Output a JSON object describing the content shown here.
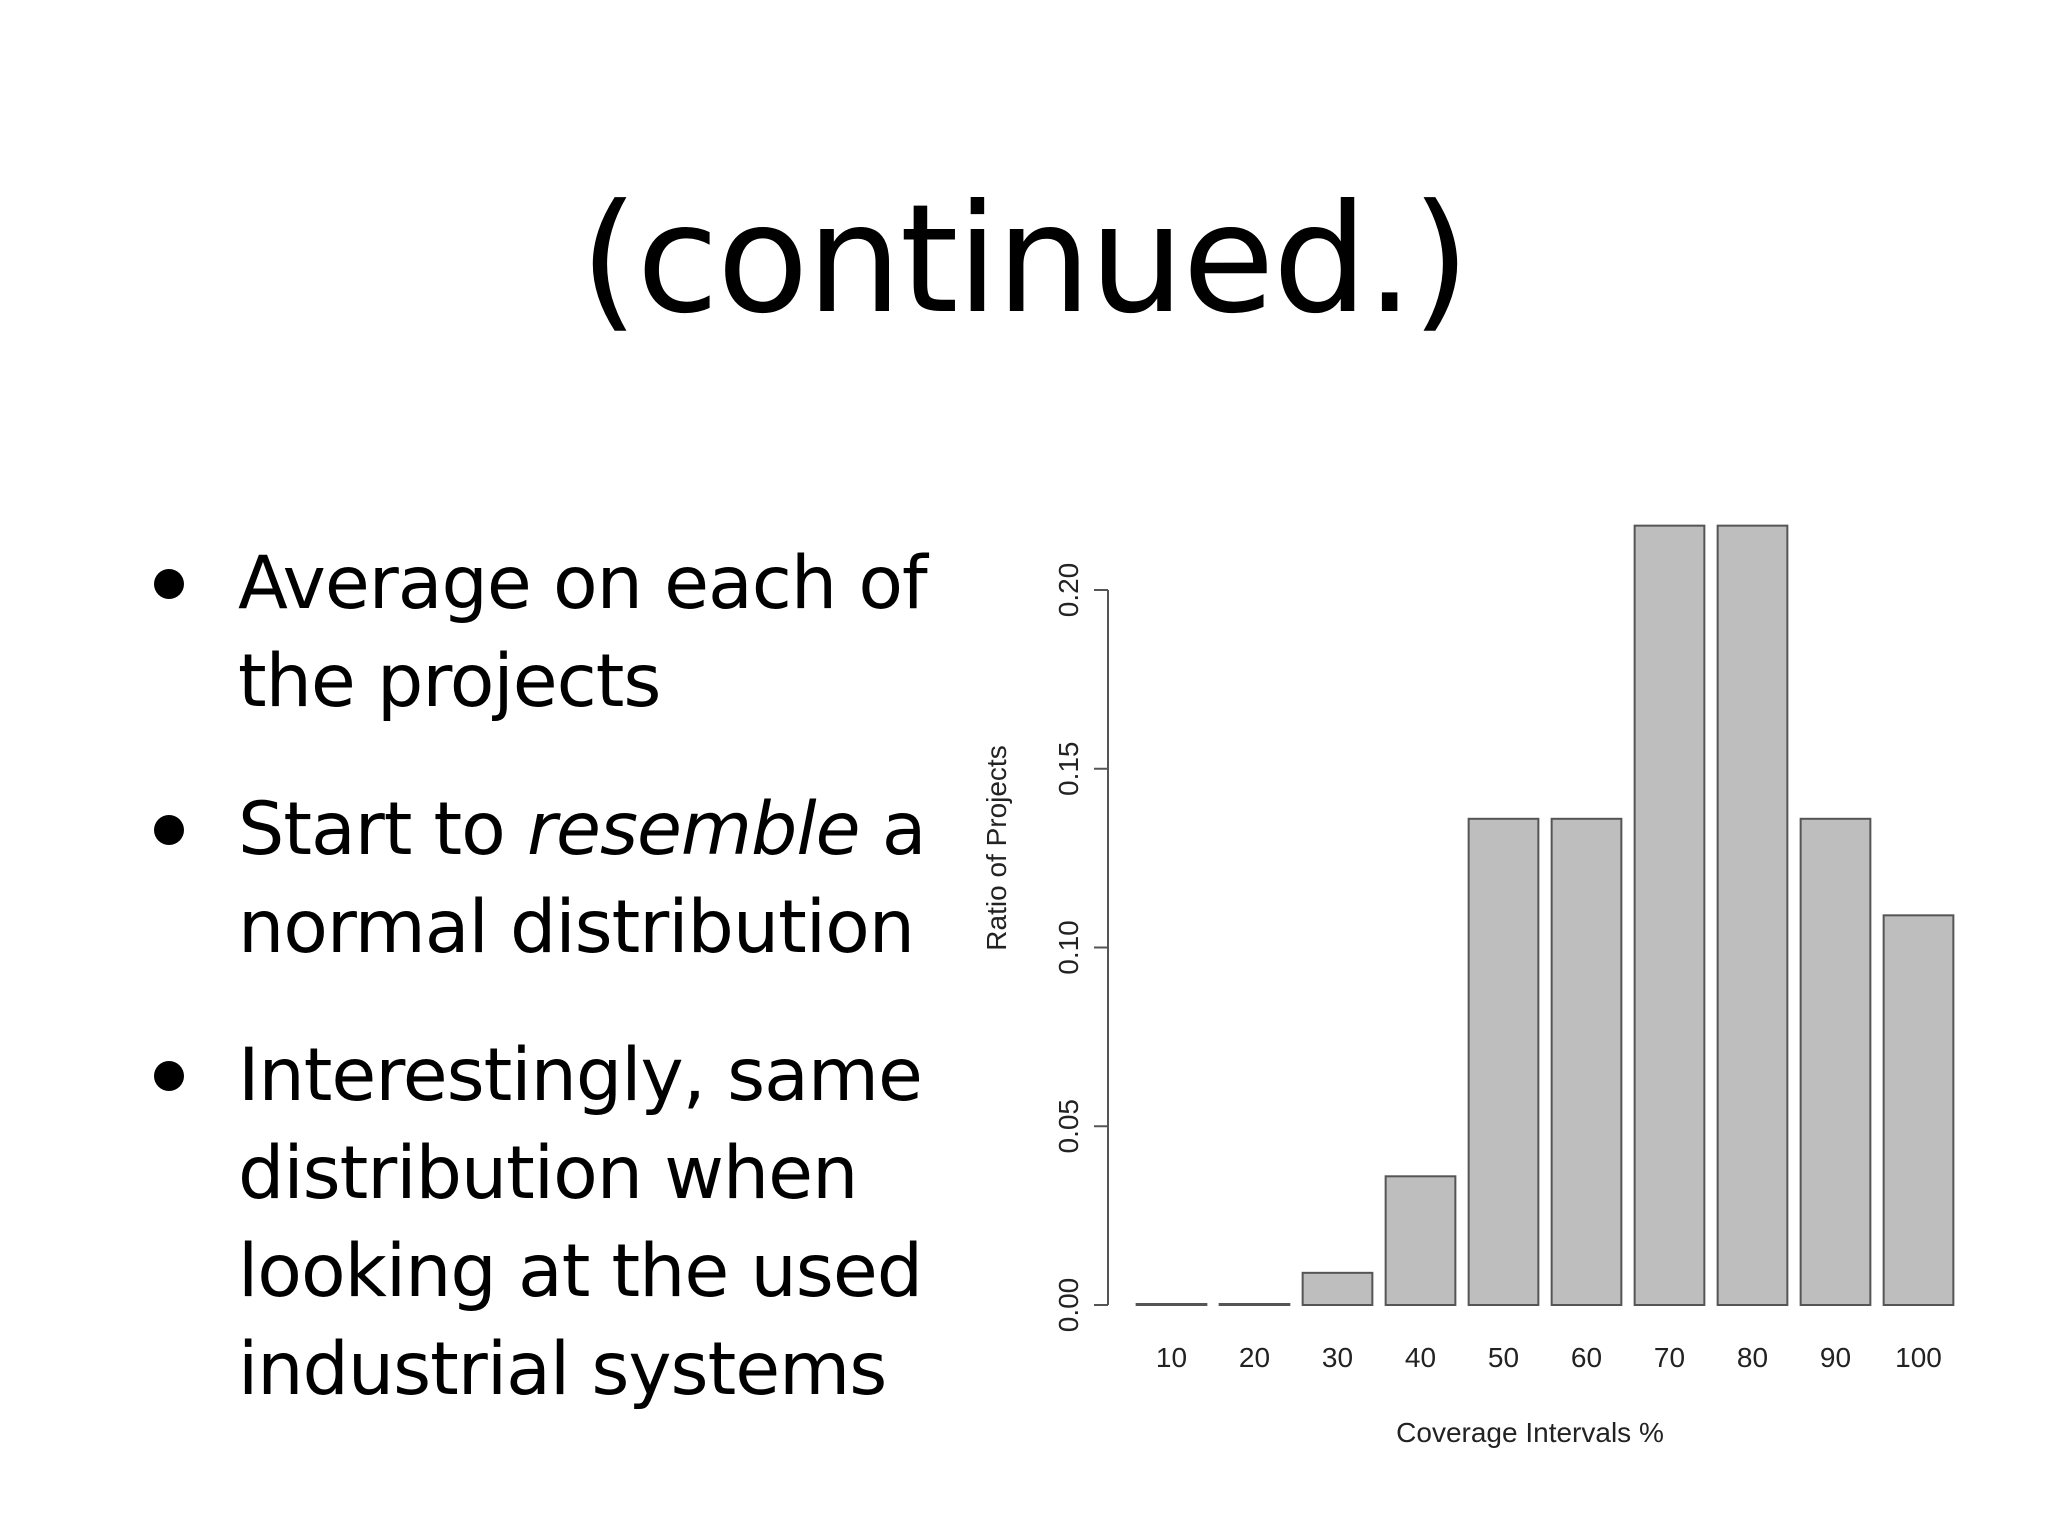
{
  "slide": {
    "title": "(continued.)",
    "bullets": [
      {
        "parts": [
          {
            "text": "Average on each of the projects",
            "italic": false
          }
        ]
      },
      {
        "parts": [
          {
            "text": "Start to ",
            "italic": false
          },
          {
            "text": "resemble",
            "italic": true
          },
          {
            "text": " a normal distribution",
            "italic": false
          }
        ]
      },
      {
        "parts": [
          {
            "text": "Interestingly, same distribution when looking at the used industrial systems",
            "italic": false
          }
        ]
      }
    ]
  },
  "chart_data": {
    "type": "bar",
    "categories": [
      "10",
      "20",
      "30",
      "40",
      "50",
      "60",
      "70",
      "80",
      "90",
      "100"
    ],
    "values": [
      0.0,
      0.0,
      0.009,
      0.036,
      0.136,
      0.136,
      0.218,
      0.218,
      0.136,
      0.109
    ],
    "title": "",
    "xlabel": "Coverage Intervals %",
    "ylabel": "Ratio of Projects",
    "ylim": [
      0,
      0.2
    ],
    "yticks": [
      0.0,
      0.05,
      0.1,
      0.15,
      0.2
    ],
    "ytick_labels": [
      "0.00",
      "0.05",
      "0.10",
      "0.15",
      "0.20"
    ],
    "grid": false,
    "bar_color": "#bebebe",
    "bar_edge_color": "#555555"
  }
}
